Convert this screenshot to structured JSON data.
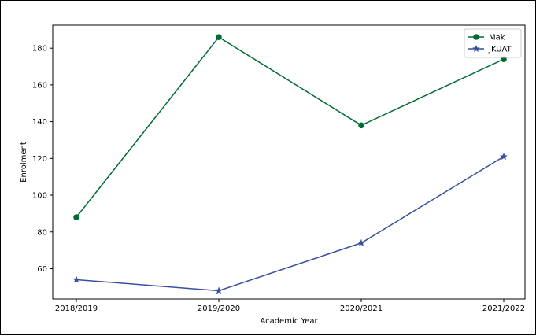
{
  "chart_data": {
    "type": "line",
    "title": "",
    "xlabel": "Academic Year",
    "ylabel": "Enrolment",
    "categories": [
      "2018/2019",
      "2019/2020",
      "2020/2021",
      "2021/2022"
    ],
    "ylim": [
      43.5,
      192.5
    ],
    "yticks": [
      60,
      80,
      100,
      120,
      140,
      160,
      180
    ],
    "grid": false,
    "legend_position": "top-right",
    "series": [
      {
        "name": "Mak",
        "values": [
          88,
          186,
          138,
          174
        ],
        "color": "#006b33",
        "marker": "circle"
      },
      {
        "name": "JKUAT",
        "values": [
          54,
          48,
          74,
          121
        ],
        "color": "#3a4fa0",
        "marker": "star"
      }
    ]
  }
}
